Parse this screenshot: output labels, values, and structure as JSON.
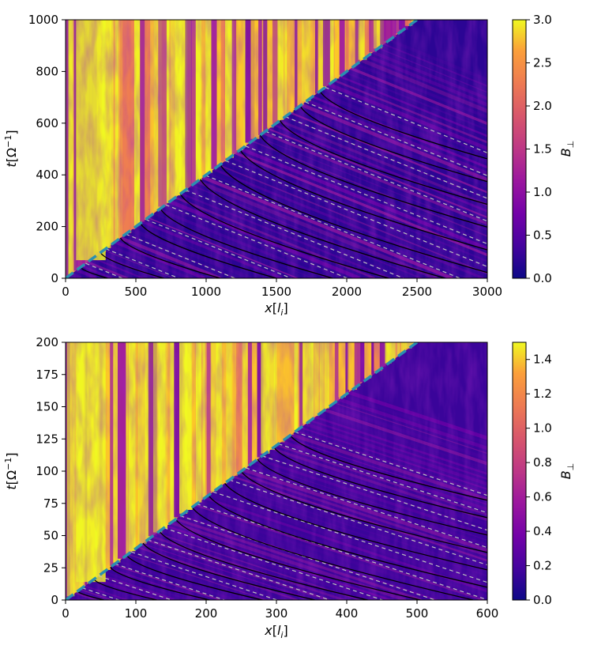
{
  "chart_data": [
    {
      "type": "heatmap",
      "title": "",
      "xlabel": "x[l_i]",
      "ylabel": "t[Ω^-1]",
      "xlim": [
        0,
        3000
      ],
      "ylim": [
        0,
        1000
      ],
      "x_ticks": [
        0,
        500,
        1000,
        1500,
        2000,
        2500,
        3000
      ],
      "y_ticks": [
        0,
        200,
        400,
        600,
        800,
        1000
      ],
      "x_tick_labels": [
        "0",
        "500",
        "1000",
        "1500",
        "2000",
        "2500",
        "3000"
      ],
      "y_tick_labels": [
        "0",
        "200",
        "400",
        "600",
        "800",
        "1000"
      ],
      "colorbar": {
        "label": "B_⊥",
        "range": [
          0.0,
          3.0
        ],
        "ticks": [
          0.0,
          0.5,
          1.0,
          1.5,
          2.0,
          2.5,
          3.0
        ],
        "tick_labels": [
          "0.0",
          "0.5",
          "1.0",
          "1.5",
          "2.0",
          "2.5",
          "3.0"
        ],
        "colormap": "plasma"
      },
      "shock_line": {
        "x": [
          0,
          2500
        ],
        "t": [
          0,
          1000
        ],
        "style": "dashed",
        "color": "#2a8fb0"
      },
      "characteristic_offsets": [
        300,
        700,
        1100,
        1500,
        1900,
        2300,
        2700,
        3100,
        3500,
        3900,
        4300,
        4700,
        5100
      ],
      "characteristic_slope_t_per_x": -0.22
    },
    {
      "type": "heatmap",
      "title": "",
      "xlabel": "x[l_i]",
      "ylabel": "t[Ω^-1]",
      "xlim": [
        0,
        600
      ],
      "ylim": [
        0,
        200
      ],
      "x_ticks": [
        0,
        100,
        200,
        300,
        400,
        500,
        600
      ],
      "y_ticks": [
        0,
        25,
        50,
        75,
        100,
        125,
        150,
        175,
        200
      ],
      "x_tick_labels": [
        "0",
        "100",
        "200",
        "300",
        "400",
        "500",
        "600"
      ],
      "y_tick_labels": [
        "0",
        "25",
        "50",
        "75",
        "100",
        "125",
        "150",
        "175",
        "200"
      ],
      "colorbar": {
        "label": "B_⊥",
        "range": [
          0.0,
          1.5
        ],
        "ticks": [
          0.0,
          0.2,
          0.4,
          0.6,
          0.8,
          1.0,
          1.2,
          1.4
        ],
        "tick_labels": [
          "0.0",
          "0.2",
          "0.4",
          "0.6",
          "0.8",
          "1.0",
          "1.2",
          "1.4"
        ],
        "colormap": "plasma"
      },
      "shock_line": {
        "x": [
          0,
          500
        ],
        "t": [
          0,
          200
        ],
        "style": "dashed",
        "color": "#2a8fb0"
      },
      "characteristic_offsets": [
        55,
        130,
        205,
        280,
        355,
        430,
        505,
        580,
        655,
        730,
        805,
        880,
        955,
        1030
      ],
      "characteristic_slope_t_per_x": -0.18
    }
  ],
  "colors": {
    "plasma_low": "#0d0887",
    "plasma_mid": "#9c179e",
    "plasma_high": "#f0f921",
    "shock_line": "#2a8fb0",
    "char_solid": "#000000",
    "char_dashed": "#bfbfbf"
  }
}
